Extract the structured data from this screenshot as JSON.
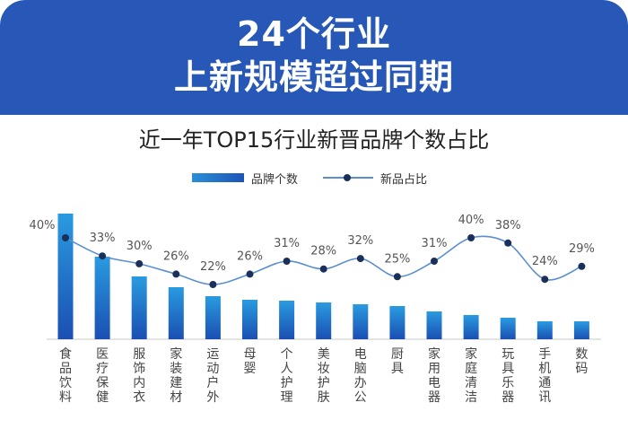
{
  "header": {
    "line1": "24个行业",
    "line2": "上新规模超过同期"
  },
  "chart_data": {
    "type": "bar",
    "title": "近一年TOP15行业新晋品牌个数占比",
    "categories": [
      "食品饮料",
      "医疗保健",
      "服饰内衣",
      "家装建材",
      "运动户外",
      "母婴",
      "个人护理",
      "美妆护肤",
      "电脑办公",
      "厨具",
      "家用电器",
      "家庭清洁",
      "玩具乐器",
      "手机通讯",
      "数码"
    ],
    "series": [
      {
        "name": "品牌个数",
        "kind": "bar",
        "values": [
          140,
          92,
          70,
          58,
          48,
          44,
          43,
          41,
          39,
          37,
          31,
          27,
          24,
          20,
          20
        ]
      },
      {
        "name": "新品占比",
        "kind": "line",
        "values": [
          40,
          33,
          30,
          26,
          22,
          26,
          31,
          28,
          32,
          25,
          31,
          40,
          38,
          24,
          29
        ],
        "labels": [
          "40%",
          "33%",
          "30%",
          "26%",
          "22%",
          "26%",
          "31%",
          "28%",
          "32%",
          "25%",
          "31%",
          "40%",
          "38%",
          "24%",
          "29%"
        ]
      }
    ],
    "colors": {
      "bar_top": "#2a9be0",
      "bar_bottom": "#1a4fb2",
      "line": "#5b8fd0",
      "dot": "#1a2f5a"
    },
    "legend_position": "top-center",
    "grid": false
  }
}
